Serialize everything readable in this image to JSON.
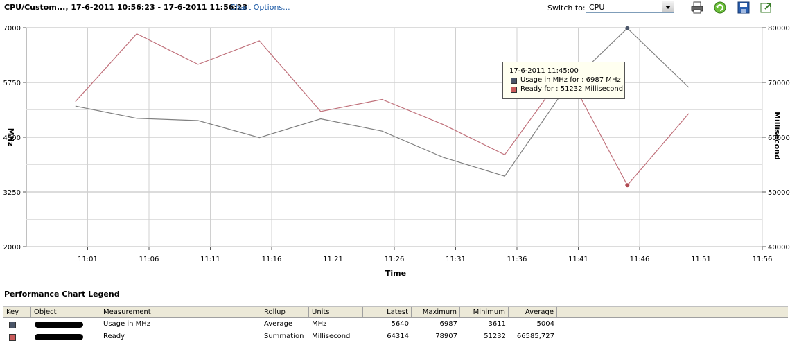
{
  "toolbar": {
    "title": "CPU/Custom..., 17-6-2011 10:56:23 - 17-6-2011 11:56:23",
    "chart_options": "Chart Options...",
    "switch_to_label": "Switch to:",
    "switch_to_value": "CPU",
    "icons": [
      "print-icon",
      "refresh-icon",
      "save-icon",
      "export-icon"
    ]
  },
  "chart_data": {
    "type": "line",
    "xlabel": "Time",
    "ylabel_left": "MHz",
    "ylabel_right": "Millisecond",
    "x_ticks": [
      "11:01",
      "11:06",
      "11:11",
      "11:16",
      "11:21",
      "11:26",
      "11:31",
      "11:36",
      "11:41",
      "11:46",
      "11:51",
      "11:56"
    ],
    "x": [
      "11:00",
      "11:05",
      "11:10",
      "11:15",
      "11:20",
      "11:25",
      "11:30",
      "11:35",
      "11:40",
      "11:45",
      "11:50"
    ],
    "y_left_ticks": [
      2000,
      3250,
      4500,
      5750,
      7000
    ],
    "y_right_ticks": [
      40000,
      50000,
      60000,
      70000,
      80000
    ],
    "ylim_left": [
      2000,
      7000
    ],
    "ylim_right": [
      40000,
      80000
    ],
    "grid": true,
    "series": [
      {
        "name": "Usage in MHz",
        "axis": "left",
        "color": "#808080",
        "values": [
          5210,
          4930,
          4880,
          4490,
          4920,
          4640,
          4040,
          3611,
          5640,
          6987,
          5640
        ]
      },
      {
        "name": "Ready",
        "axis": "right",
        "color": "#c0707a",
        "values": [
          66500,
          78900,
          73300,
          77600,
          64700,
          66900,
          62300,
          56800,
          72200,
          51232,
          64314
        ]
      }
    ],
    "tooltip": {
      "time": "17-6-2011 11:45:00",
      "lines": [
        "Usage in MHz for : 6987 MHz",
        "Ready for : 51232 Millisecond"
      ]
    }
  },
  "legend": {
    "title": "Performance Chart Legend",
    "columns": [
      "Key",
      "Object",
      "Measurement",
      "Rollup",
      "Units",
      "Latest",
      "Maximum",
      "Minimum",
      "Average"
    ],
    "rows": [
      {
        "key_color": "#4a5568",
        "measurement": "Usage in MHz",
        "rollup": "Average",
        "units": "MHz",
        "latest": "5640",
        "maximum": "6987",
        "minimum": "3611",
        "average": "5004"
      },
      {
        "key_color": "#c85a5a",
        "measurement": "Ready",
        "rollup": "Summation",
        "units": "Millisecond",
        "latest": "64314",
        "maximum": "78907",
        "minimum": "51232",
        "average": "66585,727"
      }
    ]
  }
}
